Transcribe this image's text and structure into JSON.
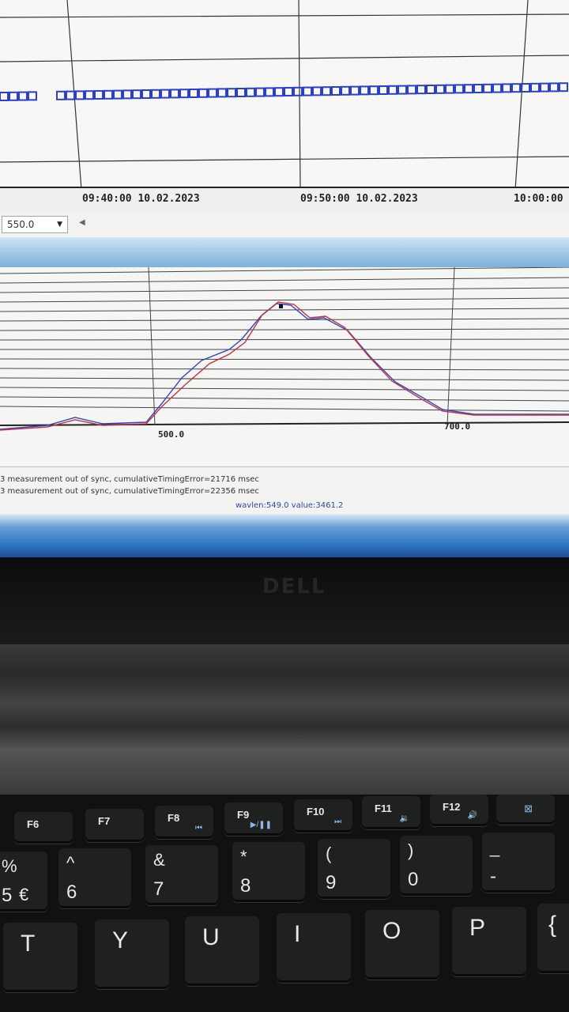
{
  "timeline": {
    "labels": [
      "09:40:00 10.02.2023",
      "09:50:00 10.02.2023",
      "10:00:00"
    ]
  },
  "toolbar": {
    "wavelength_value": "550.0"
  },
  "spectrum": {
    "x_ticks": [
      "500.0",
      "700.0"
    ],
    "marker": {
      "wavelength": 549.0,
      "value": 3461.2
    }
  },
  "log": {
    "lines": [
      "3 measurement out of sync, cumulativeTimingError=21716 msec",
      "3 measurement out of sync, cumulativeTimingError=22356 msec"
    ],
    "status": "wavlen:549.0 value:3461.2"
  },
  "laptop": {
    "brand": "DELL"
  },
  "keyboard": {
    "fkeys": [
      {
        "label": "F6",
        "media": ""
      },
      {
        "label": "F7",
        "media": ""
      },
      {
        "label": "F8",
        "media": "⏮"
      },
      {
        "label": "F9",
        "media": "▶/❚❚"
      },
      {
        "label": "F10",
        "media": "⏭"
      },
      {
        "label": "F11",
        "media": "🔉"
      },
      {
        "label": "F12",
        "media": "🔊"
      }
    ],
    "number_row": [
      {
        "top": "%",
        "bottom": "5"
      },
      {
        "top": "^",
        "bottom": "6",
        "extra": "€"
      },
      {
        "top": "&",
        "bottom": "7"
      },
      {
        "top": "*",
        "bottom": "8"
      },
      {
        "top": "(",
        "bottom": "9"
      },
      {
        "top": ")",
        "bottom": "0"
      },
      {
        "top": "_",
        "bottom": "-"
      }
    ],
    "letter_row": [
      "T",
      "Y",
      "U",
      "I",
      "O",
      "P",
      "{"
    ]
  },
  "colors": {
    "series_red": "#c8323a",
    "series_blue": "#2d46c8",
    "timeline_blue": "#2a3fd0"
  }
}
